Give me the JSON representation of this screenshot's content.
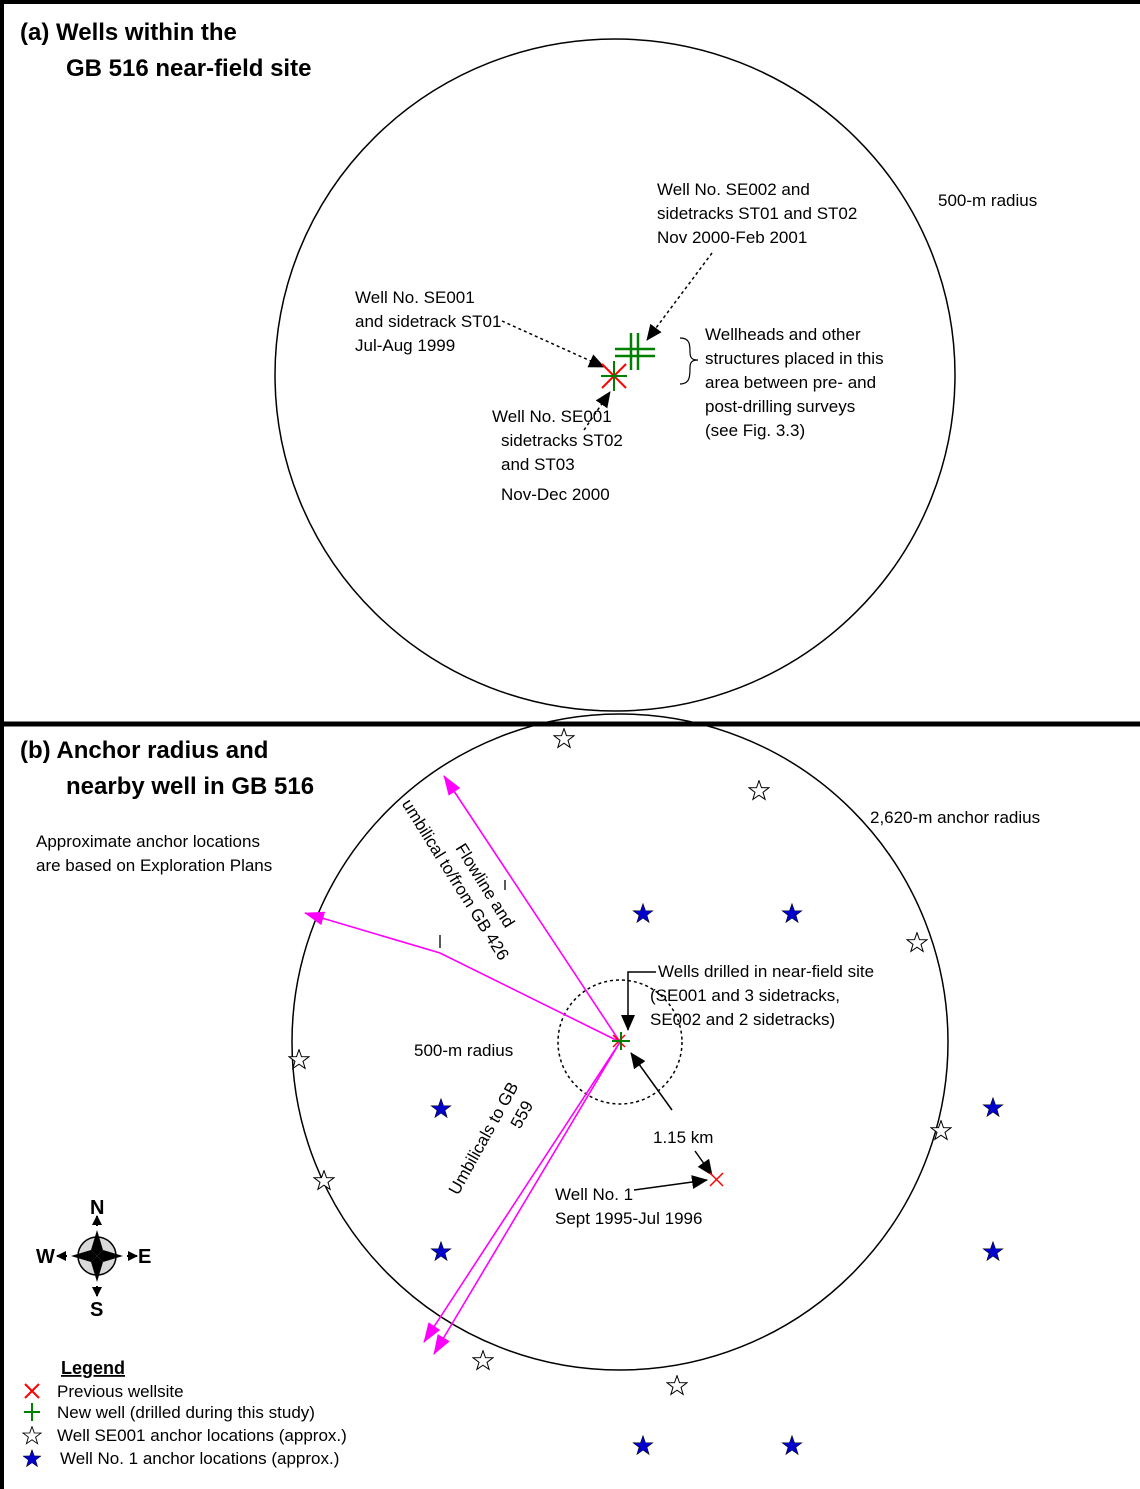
{
  "panel_a": {
    "title_line1": "(a)  Wells within the",
    "title_line2": "GB 516 near-field site",
    "radius_label": "500-m radius",
    "se002_label": [
      "Well No. SE002 and",
      "sidetracks ST01 and ST02",
      "Nov 2000-Feb 2001"
    ],
    "se001_label": [
      "Well No. SE001",
      "and sidetrack ST01",
      "Jul-Aug 1999"
    ],
    "se001_sidetracks_label": [
      "Well No. SE001",
      "sidetracks ST02",
      "and ST03",
      "Nov-Dec 2000"
    ],
    "wellheads_note": [
      "Wellheads and other",
      "structures placed in this",
      "area between pre- and",
      "post-drilling surveys",
      "(see Fig. 3.3)"
    ]
  },
  "panel_b": {
    "title_line1": "(b)  Anchor radius and",
    "title_line2": "nearby well in GB 516",
    "anchor_radius_label": "2,620-m anchor radius",
    "approx_note": [
      "Approximate anchor locations",
      "are based on Exploration Plans"
    ],
    "flowline_label": [
      "Flowline and",
      "umbilical to/from GB 426"
    ],
    "umbilicals_label": [
      "Umbilicals to GB",
      "559"
    ],
    "nearfield_label": "500-m radius",
    "wells_drilled_label": [
      "Wells drilled in near-field site",
      "(SE001 and 3 sidetracks,",
      "SE002 and 2 sidetracks)"
    ],
    "distance_label": "1.15 km",
    "well1_label": [
      "Well No. 1",
      "Sept 1995-Jul 1996"
    ],
    "compass": {
      "n": "N",
      "s": "S",
      "e": "E",
      "w": "W"
    },
    "legend": {
      "title": "Legend",
      "items": [
        {
          "label": "Previous wellsite",
          "icon": "red-x-icon"
        },
        {
          "label": "New well (drilled during this study)",
          "icon": "green-cross-icon"
        },
        {
          "label": "Well SE001 anchor locations (approx.)",
          "icon": "white-star-icon"
        },
        {
          "label": "Well No. 1 anchor locations (approx.)",
          "icon": "blue-star-icon"
        }
      ]
    }
  },
  "colors": {
    "previous_well": "#ff0000",
    "new_well": "#008000",
    "flowline": "#ff00ff",
    "well1_anchor": "#0000cc",
    "se001_anchor": "#ffffff"
  }
}
